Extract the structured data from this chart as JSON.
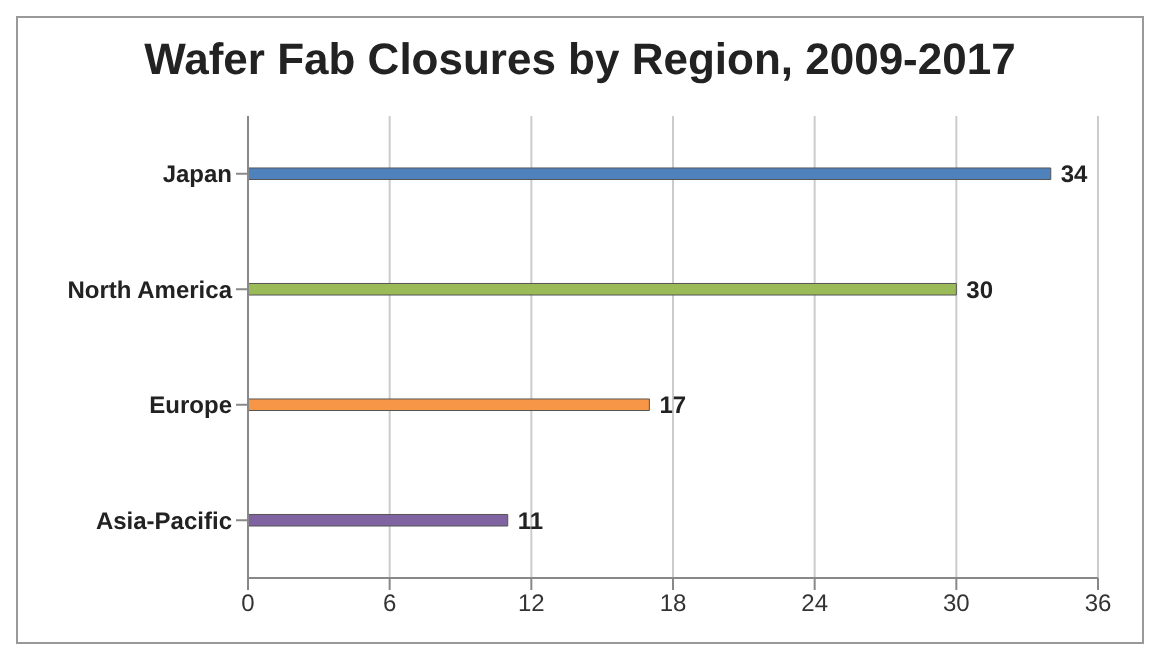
{
  "chart_data": {
    "type": "bar",
    "orientation": "horizontal",
    "title": "Wafer Fab Closures by Region, 2009-2017",
    "categories": [
      "Japan",
      "North America",
      "Europe",
      "Asia-Pacific"
    ],
    "values": [
      34,
      30,
      17,
      11
    ],
    "colors": [
      "#4f81bd",
      "#9bbb59",
      "#f79646",
      "#8064a2"
    ],
    "xlim": [
      0,
      36
    ],
    "xticks": [
      0,
      6,
      12,
      18,
      24,
      30,
      36
    ],
    "grid": "x",
    "data_labels": true
  }
}
